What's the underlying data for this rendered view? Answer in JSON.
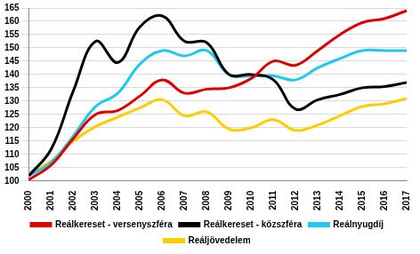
{
  "chart_data": {
    "type": "line",
    "categories": [
      "2000",
      "2001",
      "2002",
      "2003",
      "2004",
      "2005",
      "2006",
      "2007",
      "2008",
      "2009",
      "2010",
      "2011",
      "2012",
      "2013",
      "2014",
      "2015",
      "2016",
      "2017"
    ],
    "series": [
      {
        "name": "Reálkereset - versenyszféra",
        "color": "#e00000",
        "values": [
          100.5,
          106,
          116,
          125,
          126.5,
          132,
          138,
          133,
          134.5,
          135,
          138.5,
          145,
          143.5,
          149,
          155,
          159.5,
          161,
          164
        ]
      },
      {
        "name": "Reálkereset - közszféra",
        "color": "#000000",
        "values": [
          102,
          112,
          134,
          152.5,
          144.5,
          158,
          162,
          152.5,
          152,
          140,
          140,
          138,
          127,
          130.5,
          132.5,
          135,
          135.5,
          137
        ]
      },
      {
        "name": "Reálnyugdíj",
        "color": "#1ec8f0",
        "values": [
          102,
          107,
          117,
          128,
          133,
          144,
          149,
          147,
          149,
          140,
          139.5,
          139.5,
          138,
          142.5,
          146,
          149,
          149,
          149
        ]
      },
      {
        "name": "Reáljövedelem",
        "color": "#ffcc00",
        "values": [
          102.5,
          107.5,
          115,
          120.5,
          124,
          127.5,
          130.5,
          124.5,
          126,
          119.5,
          120,
          123,
          119,
          121,
          124.5,
          128,
          129,
          131
        ]
      }
    ],
    "ylim": [
      100,
      165
    ],
    "yticks": [
      100,
      105,
      110,
      115,
      120,
      125,
      130,
      135,
      140,
      145,
      150,
      155,
      160,
      165
    ],
    "grid": true,
    "legend": "bottom"
  }
}
